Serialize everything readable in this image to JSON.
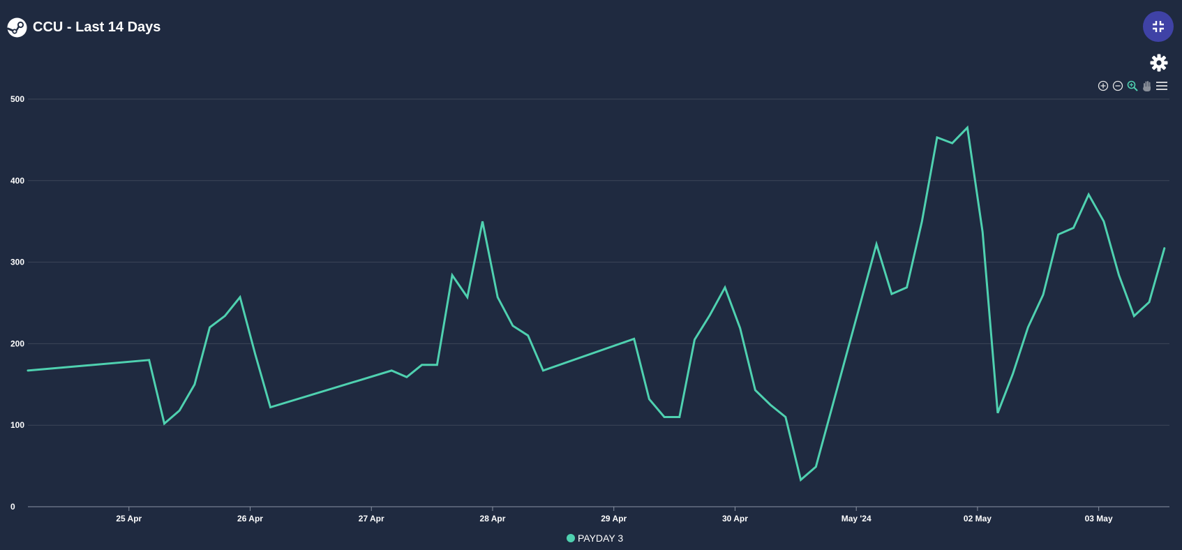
{
  "header": {
    "title": "CCU - Last 14 Days",
    "logo_icon": "steam-logo-icon"
  },
  "controls": {
    "exit_fullscreen_icon": "collapse-icon",
    "settings_icon": "gear-icon",
    "toolbar": [
      "zoom-in-icon",
      "zoom-out-icon",
      "zoom-select-icon",
      "pan-icon",
      "menu-icon"
    ]
  },
  "colors": {
    "background": "#1f2a40",
    "line": "#4fd1b0",
    "accent": "#3f42a6",
    "grid": "#3d4658"
  },
  "chart_data": {
    "type": "line",
    "title": "CCU - Last 14 Days",
    "xlabel": "",
    "ylabel": "",
    "ylim": [
      0,
      500
    ],
    "yticks": [
      0,
      100,
      200,
      300,
      400,
      500
    ],
    "xlim": [
      "2024-04-24 04:00",
      "2024-05-03 14:00"
    ],
    "x_tick_labels": [
      {
        "date": "2024-04-25",
        "label": "25 Apr",
        "bold": false
      },
      {
        "date": "2024-04-26",
        "label": "26 Apr",
        "bold": false
      },
      {
        "date": "2024-04-27",
        "label": "27 Apr",
        "bold": false
      },
      {
        "date": "2024-04-28",
        "label": "28 Apr",
        "bold": false
      },
      {
        "date": "2024-04-29",
        "label": "29 Apr",
        "bold": false
      },
      {
        "date": "2024-04-30",
        "label": "30 Apr",
        "bold": false
      },
      {
        "date": "2024-05-01",
        "label": "May '24",
        "bold": true
      },
      {
        "date": "2024-05-02",
        "label": "02 May",
        "bold": false
      },
      {
        "date": "2024-05-03",
        "label": "03 May",
        "bold": false
      }
    ],
    "grid": true,
    "legend": "bottom-center",
    "series": [
      {
        "name": "PAYDAY 3",
        "color": "#4fd1b0",
        "points": [
          [
            "2024-04-24 04:00",
            167
          ],
          [
            "2024-04-25 04:00",
            180
          ],
          [
            "2024-04-25 07:00",
            102
          ],
          [
            "2024-04-25 10:00",
            118
          ],
          [
            "2024-04-25 13:00",
            150
          ],
          [
            "2024-04-25 16:00",
            220
          ],
          [
            "2024-04-25 19:00",
            234
          ],
          [
            "2024-04-25 22:00",
            257
          ],
          [
            "2024-04-26 01:00",
            187
          ],
          [
            "2024-04-26 04:00",
            122
          ],
          [
            "2024-04-27 04:00",
            167
          ],
          [
            "2024-04-27 07:00",
            159
          ],
          [
            "2024-04-27 10:00",
            174
          ],
          [
            "2024-04-27 13:00",
            174
          ],
          [
            "2024-04-27 16:00",
            284
          ],
          [
            "2024-04-27 19:00",
            257
          ],
          [
            "2024-04-27 22:00",
            350
          ],
          [
            "2024-04-28 01:00",
            257
          ],
          [
            "2024-04-28 04:00",
            222
          ],
          [
            "2024-04-28 07:00",
            210
          ],
          [
            "2024-04-28 10:00",
            167
          ],
          [
            "2024-04-29 04:00",
            206
          ],
          [
            "2024-04-29 07:00",
            132
          ],
          [
            "2024-04-29 10:00",
            110
          ],
          [
            "2024-04-29 13:00",
            110
          ],
          [
            "2024-04-29 16:00",
            205
          ],
          [
            "2024-04-29 19:00",
            235
          ],
          [
            "2024-04-29 22:00",
            269
          ],
          [
            "2024-04-30 01:00",
            219
          ],
          [
            "2024-04-30 04:00",
            143
          ],
          [
            "2024-04-30 07:00",
            125
          ],
          [
            "2024-04-30 10:00",
            110
          ],
          [
            "2024-04-30 13:00",
            33
          ],
          [
            "2024-04-30 16:00",
            49
          ],
          [
            "2024-05-01 04:00",
            322
          ],
          [
            "2024-05-01 07:00",
            261
          ],
          [
            "2024-05-01 10:00",
            269
          ],
          [
            "2024-05-01 13:00",
            350
          ],
          [
            "2024-05-01 16:00",
            453
          ],
          [
            "2024-05-01 19:00",
            446
          ],
          [
            "2024-05-01 22:00",
            465
          ],
          [
            "2024-05-02 01:00",
            337
          ],
          [
            "2024-05-02 04:00",
            115
          ],
          [
            "2024-05-02 07:00",
            163
          ],
          [
            "2024-05-02 10:00",
            220
          ],
          [
            "2024-05-02 13:00",
            260
          ],
          [
            "2024-05-02 16:00",
            334
          ],
          [
            "2024-05-02 19:00",
            342
          ],
          [
            "2024-05-02 22:00",
            383
          ],
          [
            "2024-05-03 01:00",
            350
          ],
          [
            "2024-05-03 04:00",
            284
          ],
          [
            "2024-05-03 07:00",
            234
          ],
          [
            "2024-05-03 10:00",
            251
          ],
          [
            "2024-05-03 13:00",
            317
          ]
        ]
      }
    ]
  }
}
